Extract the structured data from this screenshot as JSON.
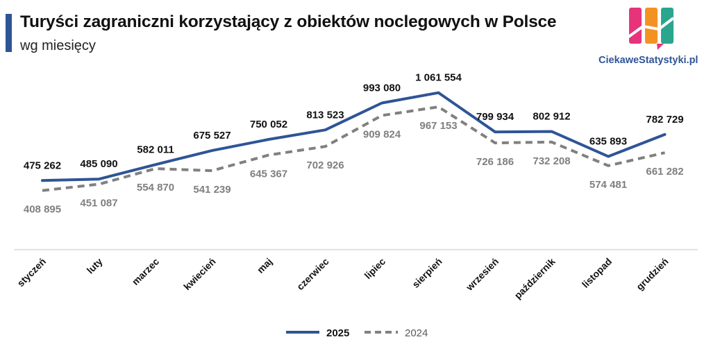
{
  "title": "Turyści zagraniczni korzystający z obiektów noclegowych w Polsce",
  "subtitle": "wg miesięcy",
  "brand": "CiekaweStatystyki.pl",
  "colors": {
    "accent": "#2f5496",
    "series_2025": "#2f5496",
    "series_2024": "#808080",
    "axis": "#d9d9d9"
  },
  "chart_data": {
    "type": "line",
    "categories": [
      "styczeń",
      "luty",
      "marzec",
      "kwiecień",
      "maj",
      "czerwiec",
      "lipiec",
      "sierpień",
      "wrzesień",
      "październik",
      "listopad",
      "grudzień"
    ],
    "series": [
      {
        "name": "2025",
        "style": "solid",
        "color": "#2f5496",
        "values": [
          475262,
          485090,
          582011,
          675527,
          750052,
          813523,
          993080,
          1061554,
          799934,
          802912,
          635893,
          782729
        ],
        "labels": [
          "475 262",
          "485 090",
          "582 011",
          "675 527",
          "750 052",
          "813 523",
          "993 080",
          "1 061 554",
          "799 934",
          "802 912",
          "635 893",
          "782 729"
        ]
      },
      {
        "name": "2024",
        "style": "dashed",
        "color": "#808080",
        "values": [
          408895,
          451087,
          554870,
          541239,
          645367,
          702926,
          909824,
          967153,
          726186,
          732208,
          574481,
          661282
        ],
        "labels": [
          "408 895",
          "451 087",
          "554 870",
          "541 239",
          "645 367",
          "702 926",
          "909 824",
          "967 153",
          "726 186",
          "732 208",
          "574 481",
          "661 282"
        ]
      }
    ],
    "ylim": [
      -400000,
      1200000
    ],
    "grid": false,
    "legend": "bottom"
  }
}
